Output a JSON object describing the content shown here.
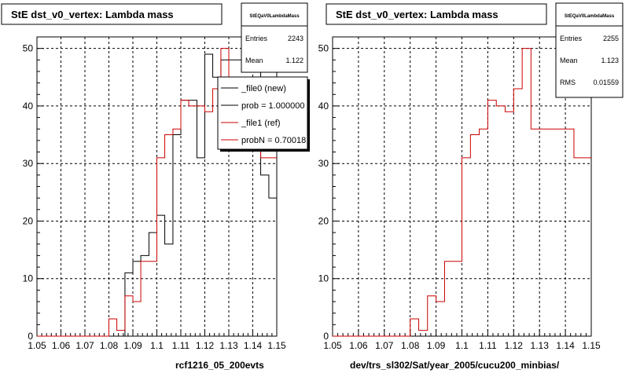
{
  "footer_text": "",
  "chart_data": [
    {
      "type": "histogram",
      "title": "StE dst_v0_vertex: Lambda mass",
      "xlabel": "rcf1216_05_200evts",
      "ylabel": "",
      "xlim": [
        1.05,
        1.15
      ],
      "ylim": [
        0,
        52
      ],
      "x_ticks": [
        "1.05",
        "1.06",
        "1.07",
        "1.08",
        "1.09",
        "1.1",
        "1.11",
        "1.12",
        "1.13",
        "1.14",
        "1.15"
      ],
      "y_ticks": [
        "0",
        "10",
        "20",
        "30",
        "40",
        "50"
      ],
      "grid": true,
      "bin_edges": [
        1.05,
        1.0533,
        1.0567,
        1.06,
        1.0633,
        1.0667,
        1.07,
        1.0733,
        1.0767,
        1.08,
        1.0833,
        1.0867,
        1.09,
        1.0933,
        1.0967,
        1.1,
        1.1033,
        1.1067,
        1.11,
        1.1133,
        1.1167,
        1.12,
        1.1233,
        1.1267,
        1.13,
        1.1333,
        1.1367,
        1.14,
        1.1433,
        1.1467,
        1.15
      ],
      "series": [
        {
          "name": "_file0 (new)",
          "color": "#000000",
          "values": [
            0,
            0,
            0,
            0,
            0,
            0,
            0,
            0,
            0,
            0,
            0,
            11,
            13,
            14,
            18,
            21,
            16,
            35,
            41,
            41,
            31,
            49,
            45,
            48,
            48,
            48,
            48,
            48,
            28,
            24
          ]
        },
        {
          "name": "_file1 (ref)",
          "color": "#cc0000",
          "values": [
            0,
            0,
            0,
            0,
            0,
            0,
            0,
            0,
            0,
            3,
            1,
            7,
            6,
            13,
            13,
            31,
            35,
            36,
            41,
            40,
            40,
            39,
            43,
            50,
            36,
            36,
            36,
            36,
            31,
            31
          ]
        }
      ],
      "stats": {
        "name": "StEQaV0LambdaMass",
        "entries_label": "Entries",
        "entries": "2243",
        "mean_label": "Mean",
        "mean": "1.122"
      },
      "legend": {
        "position": "top-right",
        "entries": [
          "_file0 (new)",
          "prob = 1.000000",
          "_file1 (ref)",
          "probN = 0.70018"
        ]
      }
    },
    {
      "type": "histogram",
      "title": "StE dst_v0_vertex: Lambda mass",
      "xlabel": "dev/trs_sl302/Sat/year_2005/cucu200_minbias/",
      "ylabel": "",
      "xlim": [
        1.05,
        1.15
      ],
      "ylim": [
        0,
        52
      ],
      "x_ticks": [
        "1.05",
        "1.06",
        "1.07",
        "1.08",
        "1.09",
        "1.1",
        "1.11",
        "1.12",
        "1.13",
        "1.14",
        "1.15"
      ],
      "y_ticks": [
        "0",
        "10",
        "20",
        "30",
        "40",
        "50"
      ],
      "grid": true,
      "bin_edges": [
        1.05,
        1.0533,
        1.0567,
        1.06,
        1.0633,
        1.0667,
        1.07,
        1.0733,
        1.0767,
        1.08,
        1.0833,
        1.0867,
        1.09,
        1.0933,
        1.0967,
        1.1,
        1.1033,
        1.1067,
        1.11,
        1.1133,
        1.1167,
        1.12,
        1.1233,
        1.1267,
        1.13,
        1.1333,
        1.1367,
        1.14,
        1.1433,
        1.1467,
        1.15
      ],
      "series": [
        {
          "name": "",
          "color": "#cc0000",
          "values": [
            0,
            0,
            0,
            0,
            0,
            0,
            0,
            0,
            0,
            3,
            1,
            7,
            6,
            13,
            13,
            31,
            35,
            36,
            41,
            40,
            39,
            43,
            50,
            36,
            36,
            36,
            36,
            36,
            31,
            31
          ]
        }
      ],
      "stats": {
        "name": "StEQaV0LambdaMass",
        "entries_label": "Entries",
        "entries": "2255",
        "mean_label": "Mean",
        "mean": "1.123",
        "rms_label": "RMS",
        "rms": "0.01559"
      }
    }
  ]
}
